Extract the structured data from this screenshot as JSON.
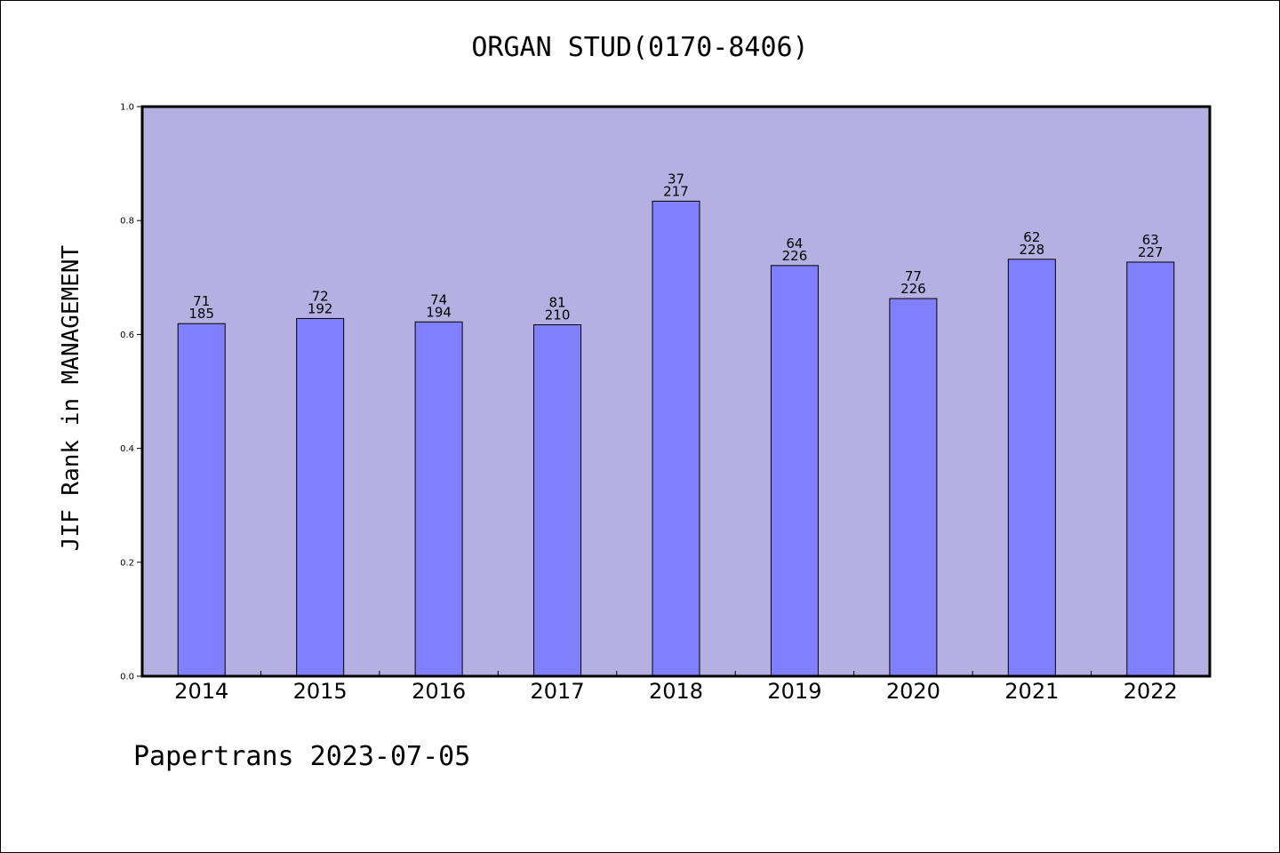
{
  "chart_data": {
    "type": "bar",
    "title": "ORGAN STUD(0170-8406)",
    "xlabel": "",
    "ylabel": "JIF Rank in MANAGEMENT",
    "ylim": [
      0,
      1.0
    ],
    "yticks": [
      "0.0",
      "0.2",
      "0.4",
      "0.6",
      "0.8",
      "1.0"
    ],
    "categories": [
      "2014",
      "2015",
      "2016",
      "2017",
      "2018",
      "2019",
      "2020",
      "2021",
      "2022"
    ],
    "values": [
      0.619,
      0.628,
      0.622,
      0.617,
      0.834,
      0.721,
      0.663,
      0.732,
      0.727
    ],
    "rank": [
      "71",
      "72",
      "74",
      "81",
      "37",
      "64",
      "77",
      "62",
      "63"
    ],
    "total": [
      "185",
      "192",
      "194",
      "210",
      "217",
      "226",
      "226",
      "228",
      "227"
    ],
    "grid": false,
    "colors": {
      "plot_background": "#b5b0e2",
      "bar_fill": "#8080ff"
    }
  },
  "footer": {
    "source": "Papertrans 2023-07-05"
  }
}
